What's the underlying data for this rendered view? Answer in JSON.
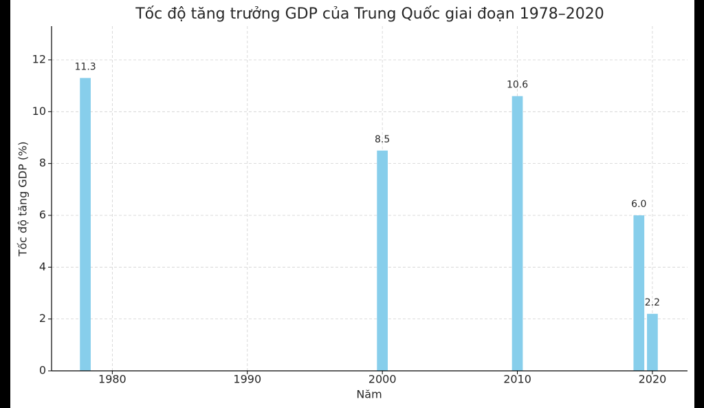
{
  "chart_data": {
    "type": "bar",
    "title": "Tốc độ tăng trưởng GDP của Trung Quốc giai đoạn 1978–2020",
    "x_label": "Năm",
    "y_label": "Tốc độ tăng GDP (%)",
    "x": [
      1978,
      2000,
      2010,
      2019,
      2020
    ],
    "values": [
      11.3,
      8.5,
      10.6,
      6.0,
      2.2
    ],
    "value_labels": [
      "11.3",
      "8.5",
      "10.6",
      "6.0",
      "2.2"
    ],
    "color": "#87ceeb",
    "xlim": [
      1975.5,
      2022.6
    ],
    "xticks": [
      1980,
      1990,
      2000,
      2010,
      2020
    ],
    "ylim": [
      0,
      13.3
    ],
    "yticks": [
      0,
      2,
      4,
      6,
      8,
      10,
      12
    ],
    "grid": true
  }
}
